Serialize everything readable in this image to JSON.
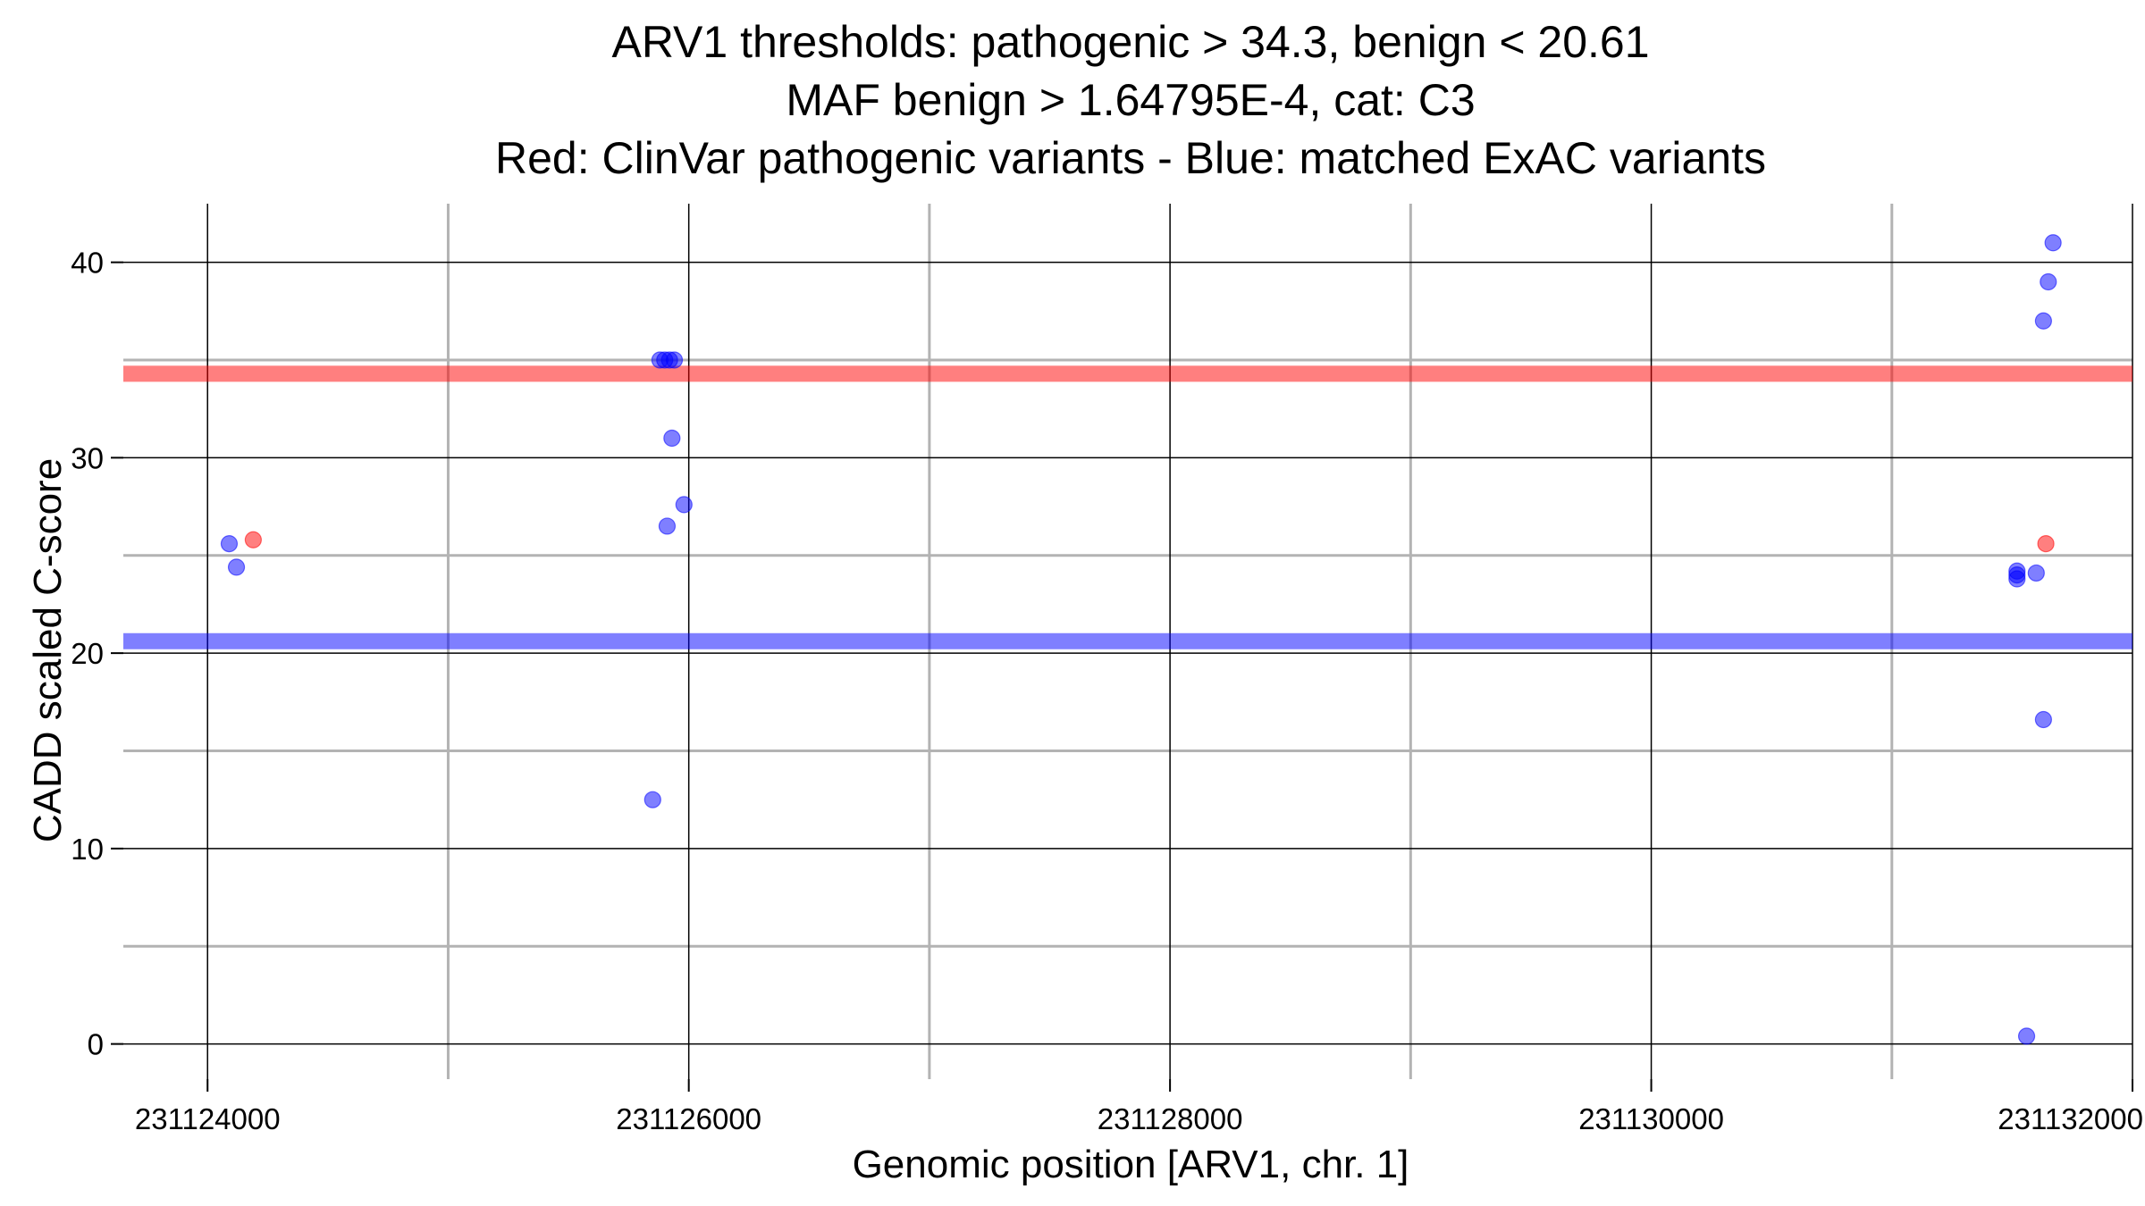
{
  "chart_data": {
    "type": "scatter",
    "title_lines": [
      "ARV1 thresholds: pathogenic > 34.3, benign < 20.61",
      "MAF benign > 1.64795E-4, cat: C3",
      "Red: ClinVar pathogenic variants - Blue: matched ExAC variants"
    ],
    "xlabel": "Genomic position [ARV1, chr. 1]",
    "ylabel": "CADD scaled C-score",
    "xlim": [
      231123650,
      231132000
    ],
    "ylim": [
      -1.8,
      43
    ],
    "x_ticks": [
      231124000,
      231126000,
      231128000,
      231130000,
      231132000
    ],
    "x_tick_labels": [
      "231124000",
      "231126000",
      "231128000",
      "231130000",
      "231132000"
    ],
    "x_minor_grid": [
      231125000,
      231127000,
      231129000,
      231131000
    ],
    "y_ticks": [
      0,
      10,
      20,
      30,
      40
    ],
    "y_tick_labels": [
      "0",
      "10",
      "20",
      "30",
      "40"
    ],
    "y_minor_grid": [
      5,
      15,
      25,
      35
    ],
    "thresholds": [
      {
        "name": "pathogenic threshold",
        "value": 34.3,
        "color": "#ff0000"
      },
      {
        "name": "benign threshold",
        "value": 20.61,
        "color": "#0000ff"
      }
    ],
    "colors": {
      "pathogenic": "#ff0000",
      "benign": "#0000ff",
      "grid_major": "#000000",
      "grid_minor": "#b3b3b3"
    },
    "series": [
      {
        "name": "ClinVar pathogenic variants",
        "color": "#ff0000",
        "points": [
          {
            "x": 231124190,
            "y": 25.8
          },
          {
            "x": 231131640,
            "y": 25.6
          }
        ]
      },
      {
        "name": "matched ExAC variants",
        "color": "#0000ff",
        "points": [
          {
            "x": 231124090,
            "y": 25.6
          },
          {
            "x": 231124120,
            "y": 24.4
          },
          {
            "x": 231125850,
            "y": 12.5
          },
          {
            "x": 231125880,
            "y": 35.0
          },
          {
            "x": 231125900,
            "y": 35.0
          },
          {
            "x": 231125910,
            "y": 26.5
          },
          {
            "x": 231125920,
            "y": 35.0
          },
          {
            "x": 231125930,
            "y": 31.0
          },
          {
            "x": 231125940,
            "y": 35.0
          },
          {
            "x": 231125980,
            "y": 27.6
          },
          {
            "x": 231131520,
            "y": 23.8
          },
          {
            "x": 231131520,
            "y": 24.0
          },
          {
            "x": 231131520,
            "y": 24.2
          },
          {
            "x": 231131560,
            "y": 0.4
          },
          {
            "x": 231131600,
            "y": 24.1
          },
          {
            "x": 231131630,
            "y": 16.6
          },
          {
            "x": 231131630,
            "y": 37.0
          },
          {
            "x": 231131650,
            "y": 39.0
          },
          {
            "x": 231131670,
            "y": 41.0
          }
        ]
      }
    ]
  }
}
